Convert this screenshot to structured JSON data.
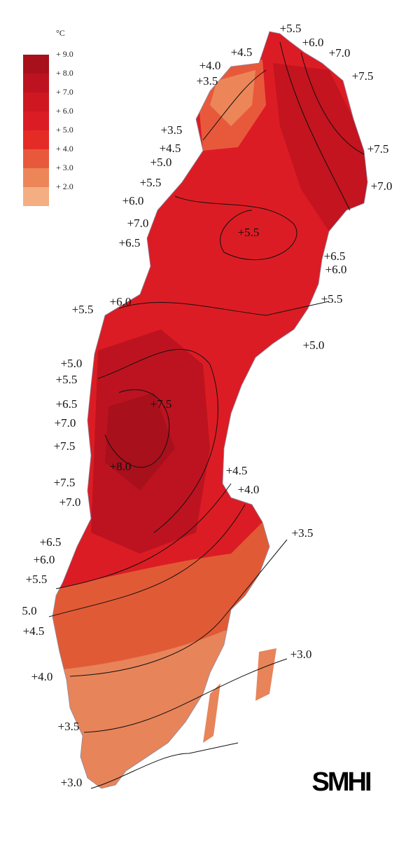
{
  "legend": {
    "unit": "°C",
    "entries": [
      {
        "label": "+ 9.0",
        "color": "#a8101c"
      },
      {
        "label": "+ 8.0",
        "color": "#bd1320"
      },
      {
        "label": "+ 7.0",
        "color": "#cf1722"
      },
      {
        "label": "+ 6.0",
        "color": "#dc1c24"
      },
      {
        "label": "+ 5.0",
        "color": "#e52b26"
      },
      {
        "label": "+ 4.0",
        "color": "#e8593c"
      },
      {
        "label": "+ 3.0",
        "color": "#ec8658"
      },
      {
        "label": "+ 2.0",
        "color": "#f4ae82"
      }
    ]
  },
  "contour_labels": [
    "+5.5",
    "+4.5",
    "+6.0",
    "+4.0",
    "+7.0",
    "+3.5",
    "+7.5",
    "+3.5",
    "+4.5",
    "+7.5",
    "+5.0",
    "+7.0",
    "+5.5",
    "+6.0",
    "+7.0",
    "+5.5",
    "+6.5",
    "+6.5",
    "+6.0",
    "+6.0",
    "+5.5",
    "+5.5",
    "+5.0",
    "+5.0",
    "+5.5",
    "+6.5",
    "+7.5",
    "+7.0",
    "+7.5",
    "+8.0",
    "+4.5",
    "+7.5",
    "+4.0",
    "+7.0",
    "+3.5",
    "+6.5",
    "+6.0",
    "+5.5",
    "5.0",
    "+4.5",
    "+3.0",
    "+4.0",
    "+3.5",
    "+3.0"
  ],
  "logo": "SMHI"
}
